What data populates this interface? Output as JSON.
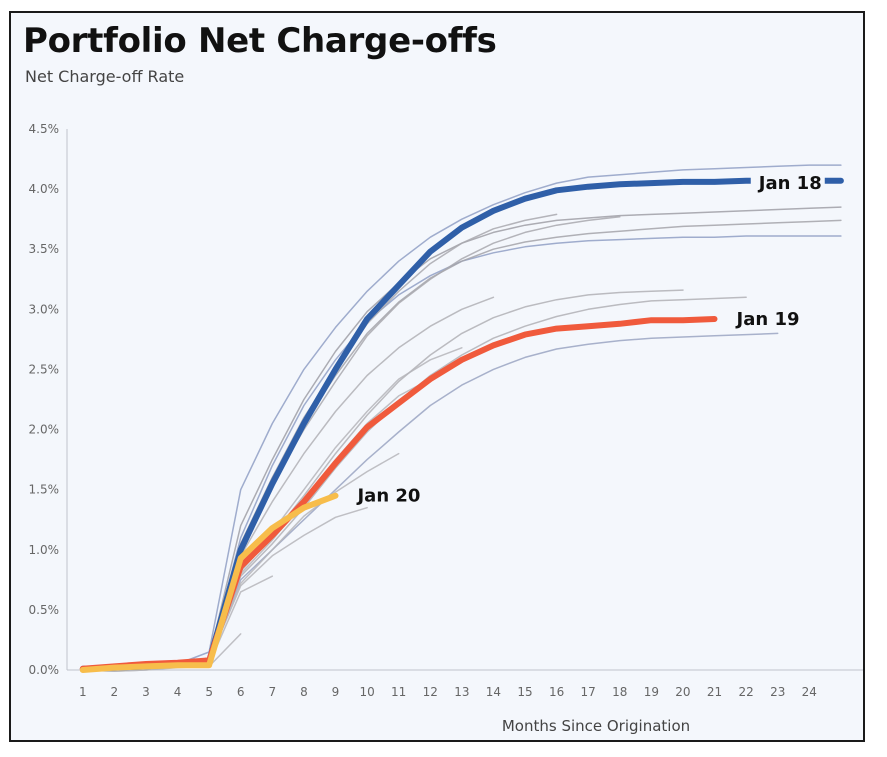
{
  "chart_data": {
    "type": "line",
    "title": "Portfolio Net Charge-offs",
    "subtitle": "Net Charge-off Rate",
    "xlabel": "Months Since Origination",
    "ylabel": "",
    "x_ticks": [
      "1",
      "2",
      "3",
      "4",
      "5",
      "6",
      "7",
      "8",
      "9",
      "10",
      "11",
      "12",
      "13",
      "14",
      "15",
      "16",
      "17",
      "18",
      "19",
      "20",
      "21",
      "22",
      "23",
      "24"
    ],
    "y_ticks": [
      "0.0%",
      "0.5%",
      "1.0%",
      "1.5%",
      "2.0%",
      "2.5%",
      "3.0%",
      "3.5%",
      "4.0%",
      "4.5%"
    ],
    "xlim": [
      0.5,
      25.7
    ],
    "ylim": [
      0,
      4.5
    ],
    "grid": false,
    "series": [
      {
        "name": "Jan 18",
        "color": "#2f5fa8",
        "highlight": true,
        "x": [
          1,
          2,
          3,
          4,
          5,
          6,
          7,
          8,
          9,
          10,
          11,
          12,
          13,
          14,
          15,
          16,
          17,
          18,
          19,
          20,
          21,
          22,
          23,
          24,
          25
        ],
        "y": [
          0.01,
          0.02,
          0.03,
          0.05,
          0.07,
          1.0,
          1.55,
          2.05,
          2.5,
          2.92,
          3.2,
          3.48,
          3.68,
          3.82,
          3.92,
          3.99,
          4.02,
          4.04,
          4.05,
          4.06,
          4.06,
          4.07,
          4.07,
          4.07,
          4.07
        ]
      },
      {
        "name": "Jan 19",
        "color": "#f05a3c",
        "highlight": true,
        "x": [
          1,
          2,
          3,
          4,
          5,
          6,
          7,
          8,
          9,
          10,
          11,
          12,
          13,
          14,
          15,
          16,
          17,
          18,
          19,
          20,
          21
        ],
        "y": [
          0.01,
          0.03,
          0.05,
          0.06,
          0.08,
          0.86,
          1.12,
          1.4,
          1.72,
          2.02,
          2.22,
          2.42,
          2.58,
          2.7,
          2.79,
          2.84,
          2.86,
          2.88,
          2.91,
          2.91,
          2.92
        ]
      },
      {
        "name": "Jan 20",
        "color": "#f7bd4b",
        "highlight": true,
        "x": [
          1,
          2,
          3,
          4,
          5,
          6,
          7,
          8,
          9
        ],
        "y": [
          0.0,
          0.02,
          0.03,
          0.04,
          0.04,
          0.93,
          1.18,
          1.35,
          1.45
        ]
      },
      {
        "name": "",
        "color": "#8f9fc4",
        "x": [
          1,
          2,
          3,
          4,
          5,
          6,
          7,
          8,
          9,
          10,
          11,
          12,
          13,
          14,
          15,
          16,
          17,
          18,
          19,
          20,
          21,
          22,
          23,
          24,
          25
        ],
        "y": [
          0.01,
          0.02,
          0.03,
          0.05,
          0.15,
          1.5,
          2.05,
          2.5,
          2.85,
          3.15,
          3.4,
          3.6,
          3.75,
          3.87,
          3.97,
          4.05,
          4.1,
          4.12,
          4.14,
          4.16,
          4.17,
          4.18,
          4.19,
          4.2,
          4.2
        ]
      },
      {
        "name": "",
        "color": "#8f9fc4",
        "x": [
          1,
          2,
          3,
          4,
          5,
          6,
          7,
          8,
          9,
          10,
          11,
          12,
          13,
          14,
          15,
          16,
          17,
          18,
          19,
          20,
          21,
          22,
          23,
          24,
          25
        ],
        "y": [
          0.01,
          0.02,
          0.03,
          0.05,
          0.1,
          1.1,
          1.7,
          2.2,
          2.58,
          2.9,
          3.12,
          3.28,
          3.4,
          3.47,
          3.52,
          3.55,
          3.57,
          3.58,
          3.59,
          3.6,
          3.6,
          3.61,
          3.61,
          3.61,
          3.61
        ]
      },
      {
        "name": "",
        "color": "#9f9fa6",
        "x": [
          1,
          2,
          3,
          4,
          5,
          6,
          7,
          8,
          9,
          10,
          11,
          12,
          13,
          14,
          15,
          16,
          17,
          18,
          19,
          20,
          21,
          22,
          23,
          24,
          25
        ],
        "y": [
          0.01,
          0.02,
          0.03,
          0.05,
          0.1,
          1.2,
          1.75,
          2.25,
          2.65,
          2.98,
          3.22,
          3.42,
          3.55,
          3.64,
          3.7,
          3.74,
          3.76,
          3.78,
          3.79,
          3.8,
          3.81,
          3.82,
          3.83,
          3.84,
          3.85
        ]
      },
      {
        "name": "",
        "color": "#a3a3a9",
        "x": [
          1,
          2,
          3,
          4,
          5,
          6,
          7,
          8,
          9,
          10,
          11,
          12,
          13,
          14,
          15,
          16,
          17,
          18,
          19,
          20,
          21,
          22,
          23,
          24,
          25
        ],
        "y": [
          0.01,
          0.02,
          0.03,
          0.05,
          0.1,
          1.05,
          1.6,
          2.05,
          2.45,
          2.8,
          3.06,
          3.26,
          3.4,
          3.5,
          3.56,
          3.6,
          3.63,
          3.65,
          3.67,
          3.69,
          3.7,
          3.71,
          3.72,
          3.73,
          3.74
        ]
      },
      {
        "name": "",
        "color": "#a8a8ae",
        "x": [
          1,
          2,
          3,
          4,
          5,
          6,
          7,
          8,
          9,
          10,
          11,
          12,
          13,
          14,
          15,
          16,
          17,
          18
        ],
        "y": [
          0.01,
          0.02,
          0.03,
          0.05,
          0.1,
          1.0,
          1.55,
          2.0,
          2.4,
          2.78,
          3.05,
          3.25,
          3.42,
          3.55,
          3.64,
          3.7,
          3.74,
          3.77
        ]
      },
      {
        "name": "",
        "color": "#a8a8ae",
        "x": [
          1,
          2,
          3,
          4,
          5,
          6,
          7,
          8,
          9,
          10,
          11,
          12,
          13,
          14,
          15,
          16
        ],
        "y": [
          0.01,
          0.02,
          0.03,
          0.05,
          0.1,
          1.05,
          1.6,
          2.1,
          2.5,
          2.88,
          3.15,
          3.38,
          3.55,
          3.67,
          3.74,
          3.79
        ]
      },
      {
        "name": "",
        "color": "#b0b0b5",
        "x": [
          1,
          2,
          3,
          4,
          5,
          6,
          7,
          8,
          9,
          10,
          11,
          12,
          13,
          14
        ],
        "y": [
          0.01,
          0.02,
          0.03,
          0.05,
          0.1,
          0.95,
          1.4,
          1.8,
          2.15,
          2.45,
          2.68,
          2.86,
          3.0,
          3.1
        ]
      },
      {
        "name": "",
        "color": "#9aa5c2",
        "x": [
          1,
          2,
          3,
          4,
          5,
          6,
          7,
          8,
          9,
          10,
          11,
          12,
          13,
          14,
          15,
          16,
          17,
          18,
          19,
          20,
          21,
          22,
          23
        ],
        "y": [
          0.01,
          0.02,
          0.03,
          0.05,
          0.08,
          0.75,
          1.0,
          1.25,
          1.5,
          1.75,
          1.98,
          2.2,
          2.37,
          2.5,
          2.6,
          2.67,
          2.71,
          2.74,
          2.76,
          2.77,
          2.78,
          2.79,
          2.8
        ]
      },
      {
        "name": "",
        "color": "#b0b0b5",
        "x": [
          1,
          2,
          3,
          4,
          5,
          6,
          7,
          8,
          9,
          10,
          11,
          12,
          13,
          14,
          15,
          16,
          17,
          18,
          19,
          20,
          21,
          22
        ],
        "y": [
          0.01,
          0.02,
          0.03,
          0.05,
          0.08,
          0.78,
          1.05,
          1.35,
          1.68,
          1.98,
          2.23,
          2.45,
          2.62,
          2.76,
          2.86,
          2.94,
          3.0,
          3.04,
          3.07,
          3.08,
          3.09,
          3.1
        ]
      },
      {
        "name": "",
        "color": "#b0b0b5",
        "x": [
          1,
          2,
          3,
          4,
          5,
          6,
          7,
          8,
          9,
          10,
          11,
          12,
          13,
          14,
          15,
          16,
          17,
          18,
          19,
          20
        ],
        "y": [
          0.01,
          0.02,
          0.03,
          0.05,
          0.08,
          0.82,
          1.12,
          1.45,
          1.8,
          2.12,
          2.4,
          2.62,
          2.8,
          2.93,
          3.02,
          3.08,
          3.12,
          3.14,
          3.15,
          3.16
        ]
      },
      {
        "name": "",
        "color": "#b5b5ba",
        "x": [
          1,
          2,
          3,
          4,
          5,
          6,
          7,
          8,
          9,
          10,
          11,
          12,
          13
        ],
        "y": [
          0.01,
          0.02,
          0.03,
          0.05,
          0.08,
          0.85,
          1.15,
          1.5,
          1.85,
          2.15,
          2.42,
          2.58,
          2.68
        ]
      },
      {
        "name": "",
        "color": "#b5b5ba",
        "x": [
          1,
          2,
          3,
          4,
          5,
          6,
          7,
          8,
          9,
          10,
          11,
          12
        ],
        "y": [
          0.01,
          0.02,
          0.03,
          0.05,
          0.08,
          0.8,
          1.08,
          1.4,
          1.75,
          2.05,
          2.28,
          2.42
        ]
      },
      {
        "name": "",
        "color": "#b5b5ba",
        "x": [
          1,
          2,
          3,
          4,
          5,
          6,
          7,
          8,
          9,
          10,
          11
        ],
        "y": [
          0.01,
          0.02,
          0.03,
          0.05,
          0.08,
          0.72,
          1.0,
          1.28,
          1.48,
          1.65,
          1.8
        ]
      },
      {
        "name": "",
        "color": "#b5b5ba",
        "x": [
          1,
          2,
          3,
          4,
          5,
          6,
          7,
          8,
          9,
          10
        ],
        "y": [
          0.01,
          0.02,
          0.03,
          0.05,
          0.08,
          0.7,
          0.95,
          1.12,
          1.27,
          1.35
        ]
      },
      {
        "name": "",
        "color": "#b5b5ba",
        "x": [
          1,
          2,
          3,
          4,
          5,
          6,
          7
        ],
        "y": [
          0.0,
          -0.01,
          0.0,
          0.03,
          0.05,
          0.65,
          0.78
        ]
      },
      {
        "name": "",
        "color": "#b5b5ba",
        "x": [
          1,
          2,
          3,
          4,
          5,
          6
        ],
        "y": [
          0.0,
          -0.01,
          0.0,
          0.02,
          0.03,
          0.3
        ]
      }
    ]
  }
}
